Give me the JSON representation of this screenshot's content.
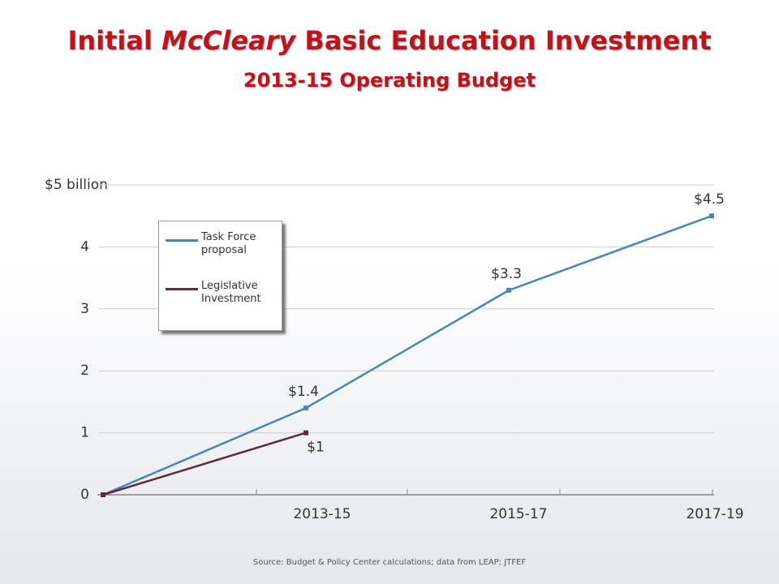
{
  "title_parts": [
    "Initial",
    "McCleary",
    "Basic Education Investment"
  ],
  "subtitle": "2013-15 Operating Budget",
  "chart_data": {
    "type": "line",
    "categories": [
      null,
      "2013-15",
      "2015-17",
      "2017-19"
    ],
    "series": [
      {
        "name": "Task Force proposal",
        "color": "#4a86b4",
        "values": [
          0,
          1.4,
          3.3,
          4.5
        ],
        "value_labels": [
          null,
          "$1.4",
          "$3.3",
          "$4.5"
        ]
      },
      {
        "name": "Legislative Investment",
        "color": "#5e2a3e",
        "values": [
          0,
          1,
          null,
          null
        ],
        "value_labels": [
          null,
          "$1",
          null,
          null
        ]
      }
    ],
    "ylim": [
      0,
      5
    ],
    "yticks": [
      0,
      1,
      2,
      3,
      4,
      {
        "value": 5,
        "label": "$5 billion"
      }
    ],
    "grid": true,
    "legend": "upper left",
    "source": "Source: Budget & Policy Center calculations; data from LEAP; JTFEF"
  }
}
